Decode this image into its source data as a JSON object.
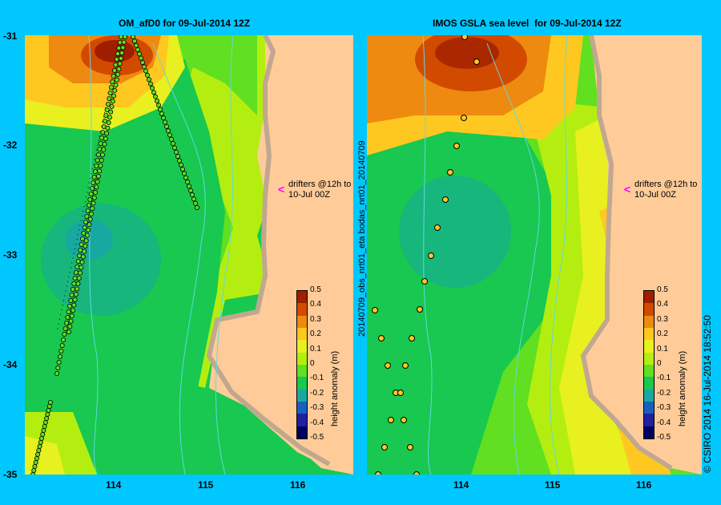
{
  "left_panel": {
    "title": "OM_afD0 for 09-Jul-2014 12Z",
    "note_line1": "drifters @12h to",
    "note_line2": "10-Jul 00Z",
    "colorbar_label": "height anomaly (m)"
  },
  "right_panel": {
    "title": "IMOS GSLA sea level  for 09-Jul-2014 12Z",
    "note_line1": "drifters @12h to",
    "note_line2": "10-Jul 00Z",
    "colorbar_label": "height anomaly (m)",
    "side_label": "20140709_obs_nrt01_eta   bodas_nrt01_20140709"
  },
  "axes": {
    "lat_ticks": [
      "-31",
      "-32",
      "-33",
      "-34",
      "-35"
    ],
    "lon_ticks": [
      "114",
      "115",
      "116"
    ],
    "lon_ticks_right": [
      "114",
      "115",
      "116"
    ]
  },
  "colorbar": {
    "ticks": [
      "0.5",
      "0.4",
      "0.3",
      "0.2",
      "0.1",
      "0",
      "-0.1",
      "-0.2",
      "-0.3",
      "-0.4",
      "-0.5"
    ],
    "colors": [
      "#a01e00",
      "#d24a00",
      "#ee8a10",
      "#ffc820",
      "#e8f020",
      "#b4ee10",
      "#60e020",
      "#18c850",
      "#18a8a0",
      "#1860c0",
      "#2020a0",
      "#000060"
    ]
  },
  "credit": "© CSIRO 2014   16-Jul-2014 18:52:50"
}
